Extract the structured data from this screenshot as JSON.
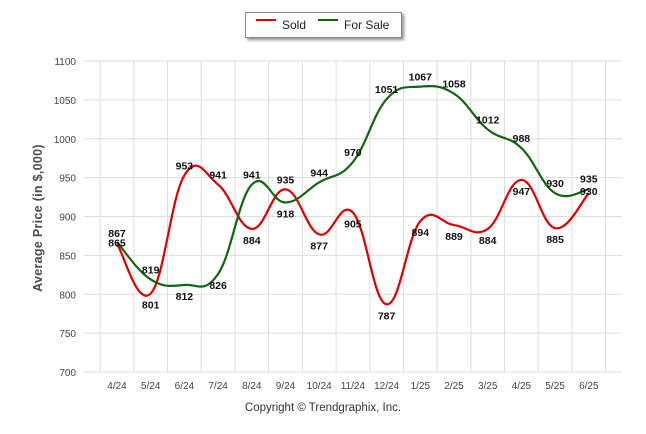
{
  "chart_data": {
    "type": "line",
    "categories": [
      "4/24",
      "5/24",
      "6/24",
      "7/24",
      "8/24",
      "9/24",
      "10/24",
      "11/24",
      "12/24",
      "1/25",
      "2/25",
      "3/25",
      "4/25",
      "5/25",
      "6/25"
    ],
    "series": [
      {
        "name": "Sold",
        "color": "#dd0000",
        "values": [
          865,
          801,
          953,
          941,
          884,
          935,
          877,
          905,
          787,
          894,
          889,
          884,
          947,
          885,
          930
        ]
      },
      {
        "name": "For Sale",
        "color": "#116611",
        "values": [
          867,
          819,
          812,
          826,
          941,
          918,
          944,
          970,
          1051,
          1067,
          1058,
          1012,
          988,
          930,
          935
        ]
      }
    ],
    "ylabel": "Average Price (in $,000)",
    "ylim": [
      700,
      1100
    ],
    "yticks": [
      "700",
      "750",
      "800",
      "850",
      "900",
      "950",
      "1000",
      "1050",
      "1100"
    ],
    "grid": true,
    "legend": "top-center"
  },
  "footer": {
    "copyright": "Copyright © Trendgraphix, Inc."
  }
}
